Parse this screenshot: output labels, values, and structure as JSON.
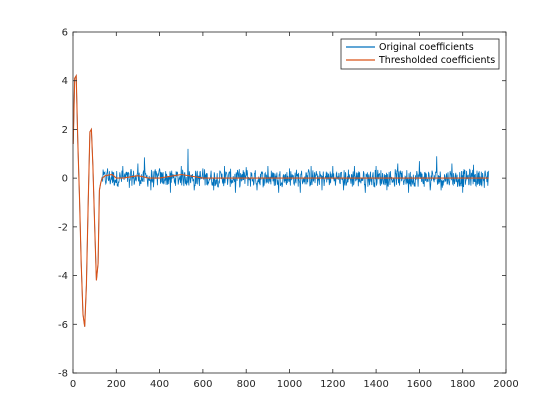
{
  "colors": {
    "original": "#0072BD",
    "thresholded": "#D95319",
    "axis": "#262626",
    "background": "#ffffff"
  },
  "chart_data": {
    "type": "line",
    "title": "",
    "xlabel": "",
    "ylabel": "",
    "xlim": [
      0,
      2000
    ],
    "ylim": [
      -8,
      6
    ],
    "xticks": [
      0,
      200,
      400,
      600,
      800,
      1000,
      1200,
      1400,
      1600,
      1800,
      2000
    ],
    "yticks": [
      -8,
      -6,
      -4,
      -2,
      0,
      2,
      4,
      6
    ],
    "grid": false,
    "legend_position": "top-right",
    "series": [
      {
        "name": "Original coefficients",
        "color": "#0072BD",
        "x": [
          1,
          8,
          15,
          22,
          30,
          38,
          46,
          54,
          62,
          70,
          78,
          85,
          92,
          100,
          108,
          116,
          122,
          128,
          135,
          145,
          160,
          180,
          200,
          230,
          260,
          300,
          330,
          360,
          400,
          450,
          500,
          531,
          560,
          600,
          650,
          700,
          750,
          800,
          850,
          900,
          950,
          1000,
          1050,
          1100,
          1150,
          1200,
          1250,
          1300,
          1350,
          1400,
          1450,
          1500,
          1550,
          1600,
          1650,
          1680,
          1700,
          1750,
          1800,
          1850,
          1900,
          1920
        ],
        "y": [
          1.4,
          4.1,
          4.2,
          1.5,
          -0.8,
          -3.5,
          -5.6,
          -6.1,
          -4.4,
          -1.0,
          1.9,
          2.0,
          0.5,
          -2.0,
          -4.2,
          -3.5,
          -0.5,
          -0.2,
          0.05,
          0.2,
          0.4,
          0.3,
          -0.2,
          0.5,
          -0.4,
          0.6,
          0.85,
          -0.5,
          0.4,
          -0.6,
          0.5,
          1.2,
          -0.5,
          0.4,
          -0.5,
          0.5,
          -0.6,
          0.45,
          -0.5,
          0.5,
          -0.6,
          0.4,
          -0.6,
          0.5,
          -0.5,
          0.5,
          -0.5,
          0.5,
          -0.6,
          0.5,
          -0.5,
          0.6,
          -0.6,
          0.7,
          -0.5,
          0.9,
          -0.5,
          0.6,
          -0.6,
          0.55,
          -0.4,
          0.3
        ]
      },
      {
        "name": "Thresholded coefficients",
        "color": "#D95319",
        "x": [
          1,
          8,
          15,
          22,
          30,
          38,
          46,
          54,
          62,
          70,
          78,
          85,
          92,
          100,
          108,
          116,
          122,
          128,
          135,
          150,
          180,
          200,
          230,
          300,
          350,
          400,
          500,
          600,
          800,
          1000,
          1200,
          1400,
          1600,
          1800,
          1920
        ],
        "y": [
          1.4,
          4.1,
          4.2,
          1.5,
          -0.8,
          -3.5,
          -5.6,
          -6.1,
          -4.4,
          -1.0,
          1.9,
          2.0,
          0.5,
          -2.0,
          -4.2,
          -3.5,
          -0.5,
          -0.2,
          0.0,
          0.1,
          0.15,
          0.0,
          0.0,
          0.1,
          0.0,
          0.0,
          0.15,
          0.0,
          0.0,
          0.0,
          0.0,
          0.0,
          0.0,
          0.0,
          0.0
        ]
      }
    ]
  }
}
